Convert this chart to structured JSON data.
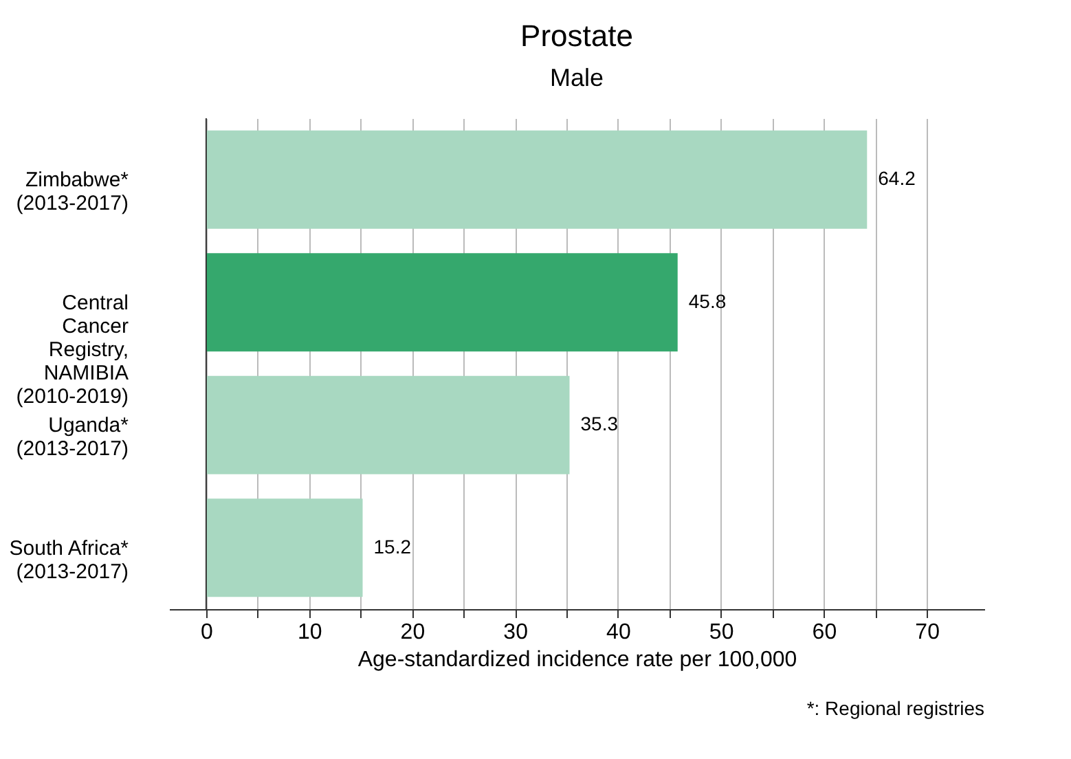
{
  "chart_data": {
    "type": "bar",
    "orientation": "horizontal",
    "title": "Prostate",
    "subtitle": "Male",
    "categories": [
      "Zimbabwe*\n(2013-2017)",
      "Central\nCancer\nRegistry,\nNAMIBIA\n(2010-2019)",
      "Uganda*\n(2013-2017)",
      "South Africa*\n(2013-2017)"
    ],
    "values": [
      64.2,
      45.8,
      35.3,
      15.2
    ],
    "colors": [
      "#a8d8c1",
      "#35a86d",
      "#a8d8c1",
      "#a8d8c1"
    ],
    "xlabel": "Age-standardized incidence rate per 100,000",
    "xlim": [
      -3.6,
      75.6
    ],
    "xticks": [
      0,
      {
        "value": 5,
        "label": null
      },
      10,
      {
        "value": 15,
        "label": null
      },
      20,
      {
        "value": 25,
        "label": null
      },
      30,
      {
        "value": 35,
        "label": null
      },
      40,
      {
        "value": 45,
        "label": null
      },
      50,
      {
        "value": 55,
        "label": null
      },
      60,
      {
        "value": 65,
        "label": null
      },
      70
    ],
    "grid": "x",
    "data_labels": true,
    "annotations": [
      "*: Regional registries"
    ]
  }
}
